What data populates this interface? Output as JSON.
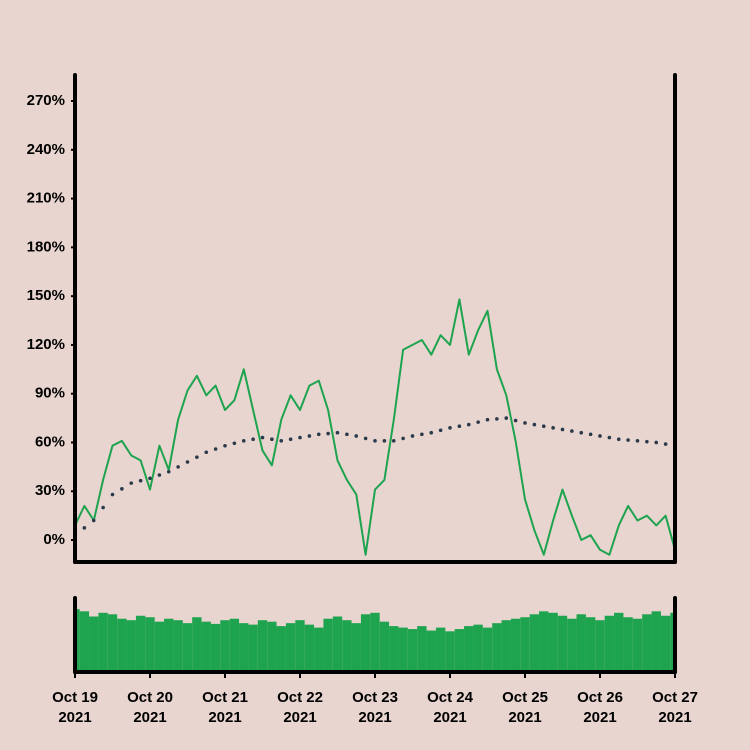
{
  "chart_data": [
    {
      "type": "line",
      "x": [
        "2021-10-19 00:00",
        "2021-10-19 03:00",
        "2021-10-19 06:00",
        "2021-10-19 09:00",
        "2021-10-19 12:00",
        "2021-10-19 15:00",
        "2021-10-19 18:00",
        "2021-10-19 21:00",
        "2021-10-20 00:00",
        "2021-10-20 03:00",
        "2021-10-20 06:00",
        "2021-10-20 09:00",
        "2021-10-20 12:00",
        "2021-10-20 15:00",
        "2021-10-20 18:00",
        "2021-10-20 21:00",
        "2021-10-21 00:00",
        "2021-10-21 03:00",
        "2021-10-21 06:00",
        "2021-10-21 09:00",
        "2021-10-21 12:00",
        "2021-10-21 15:00",
        "2021-10-21 18:00",
        "2021-10-21 21:00",
        "2021-10-22 00:00",
        "2021-10-22 03:00",
        "2021-10-22 06:00",
        "2021-10-22 09:00",
        "2021-10-22 12:00",
        "2021-10-22 15:00",
        "2021-10-22 18:00",
        "2021-10-22 21:00",
        "2021-10-23 00:00",
        "2021-10-23 03:00",
        "2021-10-23 06:00",
        "2021-10-23 09:00",
        "2021-10-23 12:00",
        "2021-10-23 15:00",
        "2021-10-23 18:00",
        "2021-10-23 21:00",
        "2021-10-24 00:00",
        "2021-10-24 03:00",
        "2021-10-24 06:00",
        "2021-10-24 09:00",
        "2021-10-24 12:00",
        "2021-10-24 15:00",
        "2021-10-24 18:00",
        "2021-10-24 21:00",
        "2021-10-25 00:00",
        "2021-10-25 03:00",
        "2021-10-25 06:00",
        "2021-10-25 09:00",
        "2021-10-25 12:00",
        "2021-10-25 15:00",
        "2021-10-25 18:00",
        "2021-10-25 21:00",
        "2021-10-26 00:00",
        "2021-10-26 03:00",
        "2021-10-26 06:00",
        "2021-10-26 09:00",
        "2021-10-26 12:00",
        "2021-10-26 15:00",
        "2021-10-26 18:00",
        "2021-10-26 21:00",
        "2021-10-27 00:00"
      ],
      "series": [
        {
          "color": "#1ea34f",
          "style": "solid",
          "values": [
            9,
            21,
            12,
            37,
            58,
            61,
            52,
            49,
            31,
            58,
            43,
            74,
            92,
            101,
            89,
            95,
            80,
            86,
            105,
            80,
            55,
            46,
            74,
            89,
            80,
            95,
            98,
            80,
            49,
            37,
            28,
            -9,
            31,
            37,
            74,
            117,
            120,
            123,
            114,
            126,
            120,
            148,
            114,
            129,
            141,
            105,
            89,
            61,
            25,
            6,
            -9,
            12,
            31,
            15,
            0,
            3,
            -6,
            -9,
            9,
            21,
            12,
            15,
            9,
            15,
            -6
          ]
        },
        {
          "color": "#2b3a4a",
          "style": "dotted",
          "values": [
            3,
            7.5,
            12,
            20,
            28,
            31.5,
            35,
            36.5,
            38,
            40,
            42,
            45,
            48,
            51,
            54,
            56,
            58,
            59.5,
            61,
            62,
            63,
            62,
            61,
            62,
            63,
            64,
            65,
            65.5,
            66,
            65,
            64,
            62.5,
            61,
            61,
            61,
            62.5,
            64,
            65,
            66,
            67.5,
            69,
            70,
            71,
            72.5,
            74,
            74.5,
            75,
            73.5,
            72,
            71,
            70,
            69,
            68,
            67,
            66,
            65,
            64,
            63,
            62,
            61.5,
            61,
            60.5,
            60,
            59,
            58
          ]
        }
      ],
      "xlim": [
        "2021-10-19",
        "2021-10-27"
      ],
      "ylim": [
        -13.5,
        286
      ],
      "yticks": [
        {
          "value": 0,
          "label": "0%"
        },
        {
          "value": 30,
          "label": "30%"
        },
        {
          "value": 60,
          "label": "60%"
        },
        {
          "value": 90,
          "label": "90%"
        },
        {
          "value": 120,
          "label": "120%"
        },
        {
          "value": 150,
          "label": "150%"
        },
        {
          "value": 180,
          "label": "180%"
        },
        {
          "value": 210,
          "label": "210%"
        },
        {
          "value": 240,
          "label": "240%"
        },
        {
          "value": 270,
          "label": "270%"
        }
      ],
      "grid": false
    },
    {
      "type": "bar",
      "x": [
        "2021-10-19 00:00",
        "2021-10-19 03:00",
        "2021-10-19 06:00",
        "2021-10-19 09:00",
        "2021-10-19 12:00",
        "2021-10-19 15:00",
        "2021-10-19 18:00",
        "2021-10-19 21:00",
        "2021-10-20 00:00",
        "2021-10-20 03:00",
        "2021-10-20 06:00",
        "2021-10-20 09:00",
        "2021-10-20 12:00",
        "2021-10-20 15:00",
        "2021-10-20 18:00",
        "2021-10-20 21:00",
        "2021-10-21 00:00",
        "2021-10-21 03:00",
        "2021-10-21 06:00",
        "2021-10-21 09:00",
        "2021-10-21 12:00",
        "2021-10-21 15:00",
        "2021-10-21 18:00",
        "2021-10-21 21:00",
        "2021-10-22 00:00",
        "2021-10-22 03:00",
        "2021-10-22 06:00",
        "2021-10-22 09:00",
        "2021-10-22 12:00",
        "2021-10-22 15:00",
        "2021-10-22 18:00",
        "2021-10-22 21:00",
        "2021-10-23 00:00",
        "2021-10-23 03:00",
        "2021-10-23 06:00",
        "2021-10-23 09:00",
        "2021-10-23 12:00",
        "2021-10-23 15:00",
        "2021-10-23 18:00",
        "2021-10-23 21:00",
        "2021-10-24 00:00",
        "2021-10-24 03:00",
        "2021-10-24 06:00",
        "2021-10-24 09:00",
        "2021-10-24 12:00",
        "2021-10-24 15:00",
        "2021-10-24 18:00",
        "2021-10-24 21:00",
        "2021-10-25 00:00",
        "2021-10-25 03:00",
        "2021-10-25 06:00",
        "2021-10-25 09:00",
        "2021-10-25 12:00",
        "2021-10-25 15:00",
        "2021-10-25 18:00",
        "2021-10-25 21:00",
        "2021-10-26 00:00",
        "2021-10-26 03:00",
        "2021-10-26 06:00",
        "2021-10-26 09:00",
        "2021-10-26 12:00",
        "2021-10-26 15:00",
        "2021-10-26 18:00",
        "2021-10-26 21:00",
        "2021-10-27 00:00"
      ],
      "values": [
        85,
        82,
        75,
        80,
        78,
        72,
        70,
        76,
        74,
        68,
        72,
        70,
        66,
        74,
        68,
        65,
        70,
        72,
        66,
        64,
        70,
        68,
        62,
        66,
        70,
        64,
        60,
        72,
        75,
        70,
        66,
        78,
        80,
        68,
        62,
        60,
        58,
        62,
        56,
        60,
        55,
        58,
        62,
        64,
        60,
        66,
        70,
        72,
        74,
        78,
        82,
        80,
        76,
        72,
        78,
        74,
        70,
        76,
        80,
        74,
        72,
        78,
        82,
        76,
        80
      ],
      "color": "#1ea34f",
      "xlim": [
        "2021-10-19",
        "2021-10-27"
      ],
      "ylim": [
        0,
        100
      ],
      "xticks": [
        {
          "value": "2021-10-19",
          "label": "Oct 19\n2021"
        },
        {
          "value": "2021-10-20",
          "label": "Oct 20\n2021"
        },
        {
          "value": "2021-10-21",
          "label": "Oct 21\n2021"
        },
        {
          "value": "2021-10-22",
          "label": "Oct 22\n2021"
        },
        {
          "value": "2021-10-23",
          "label": "Oct 23\n2021"
        },
        {
          "value": "2021-10-24",
          "label": "Oct 24\n2021"
        },
        {
          "value": "2021-10-25",
          "label": "Oct 25\n2021"
        },
        {
          "value": "2021-10-26",
          "label": "Oct 26\n2021"
        },
        {
          "value": "2021-10-27",
          "label": "Oct 27\n2021"
        }
      ]
    }
  ]
}
